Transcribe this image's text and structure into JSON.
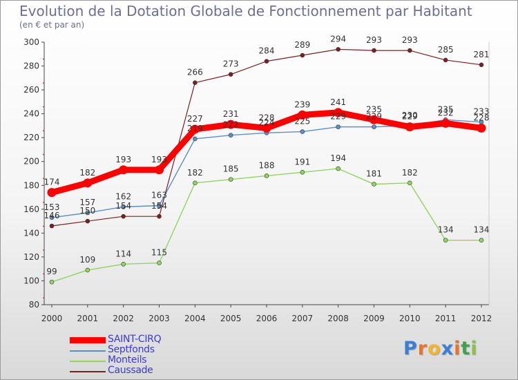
{
  "title": "Evolution de la Dotation Globale de Fonctionnement par Habitant",
  "subtitle": "(en € et par an)",
  "brand": {
    "letters": [
      "P",
      "r",
      "o",
      "x",
      "i",
      "t",
      "i"
    ],
    "colors": [
      "#3a7fd5",
      "#e8742a",
      "#f2b42a",
      "#3a7fd5",
      "#e8742a",
      "#3fa34d",
      "#8bc34a"
    ]
  },
  "chart_data": {
    "type": "line",
    "x": [
      "2000",
      "2001",
      "2002",
      "2003",
      "2004",
      "2005",
      "2006",
      "2007",
      "2008",
      "2009",
      "2010",
      "2011",
      "2012"
    ],
    "ylim": [
      80,
      300
    ],
    "yticks": [
      "80",
      "100",
      "120",
      "140",
      "160",
      "180",
      "200",
      "220",
      "240",
      "260",
      "280",
      "300"
    ],
    "grid": false,
    "legend_position": "bottom-left",
    "series": [
      {
        "name": "SAINT-CIRQ",
        "color": "#ff0000",
        "width": 9,
        "marker": 6.5,
        "values": [
          174,
          182,
          193,
          193,
          227,
          231,
          228,
          239,
          241,
          235,
          229,
          232,
          228
        ],
        "labels": [
          "174",
          "182",
          "193",
          "193",
          "227",
          "231",
          "228",
          "239",
          "241",
          "235",
          "229",
          "232",
          "228"
        ]
      },
      {
        "name": "Septfonds",
        "color": "#5a8fc8",
        "width": 1.4,
        "marker": 3,
        "values": [
          153,
          157,
          162,
          163,
          219,
          222,
          224,
          225,
          229,
          229,
          230,
          235,
          233
        ],
        "labels": [
          "153",
          "157",
          "162",
          "163",
          "219",
          "222",
          "224",
          "225",
          "229",
          "229",
          "230",
          "235",
          "233"
        ]
      },
      {
        "name": "Monteils",
        "color": "#90d560",
        "width": 1.4,
        "marker": 3,
        "values": [
          99,
          109,
          114,
          115,
          182,
          185,
          188,
          191,
          194,
          181,
          182,
          134,
          134
        ],
        "labels": [
          "99",
          "109",
          "114",
          "115",
          "182",
          "185",
          "188",
          "191",
          "194",
          "181",
          "182",
          "134",
          "134"
        ]
      },
      {
        "name": "Caussade",
        "color": "#7a1f24",
        "width": 1.2,
        "marker": 3,
        "values": [
          146,
          150,
          154,
          154,
          266,
          273,
          284,
          289,
          294,
          293,
          293,
          285,
          281
        ],
        "labels": [
          "146",
          "150",
          "154",
          "154",
          "266",
          "273",
          "284",
          "289",
          "294",
          "293",
          "293",
          "285",
          "281"
        ]
      }
    ]
  }
}
